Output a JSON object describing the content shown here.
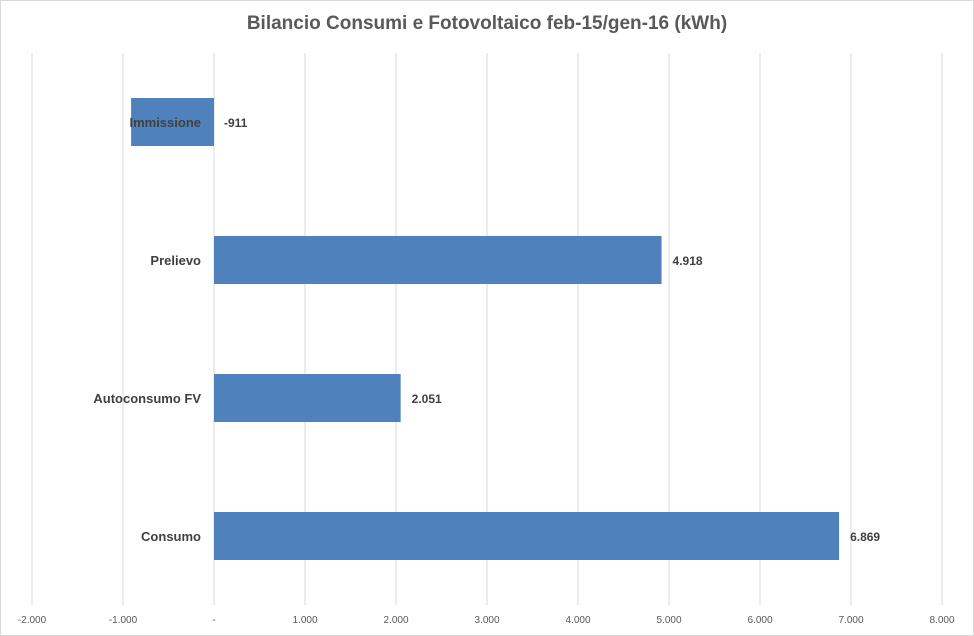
{
  "chart_data": {
    "type": "bar",
    "orientation": "horizontal",
    "title": "Bilancio Consumi e Fotovoltaico feb-15/gen-16 (kWh)",
    "categories": [
      "Immissione",
      "Prelievo",
      "Autoconsumo FV",
      "Consumo"
    ],
    "values": [
      -911,
      4918,
      2051,
      6869
    ],
    "value_labels": [
      "-911",
      "4.918",
      "2.051",
      "6.869"
    ],
    "xlim": [
      -2000,
      8000
    ],
    "ticks": [
      -2000,
      -1000,
      0,
      1000,
      2000,
      3000,
      4000,
      5000,
      6000,
      7000,
      8000
    ],
    "tick_labels": [
      "-2.000",
      "-1.000",
      "-",
      "1.000",
      "2.000",
      "3.000",
      "4.000",
      "5.000",
      "6.000",
      "7.000",
      "8.000"
    ],
    "grid": true,
    "legend": "none",
    "bar_color": "#4f81bd",
    "grid_color": "#d9d9d9"
  }
}
